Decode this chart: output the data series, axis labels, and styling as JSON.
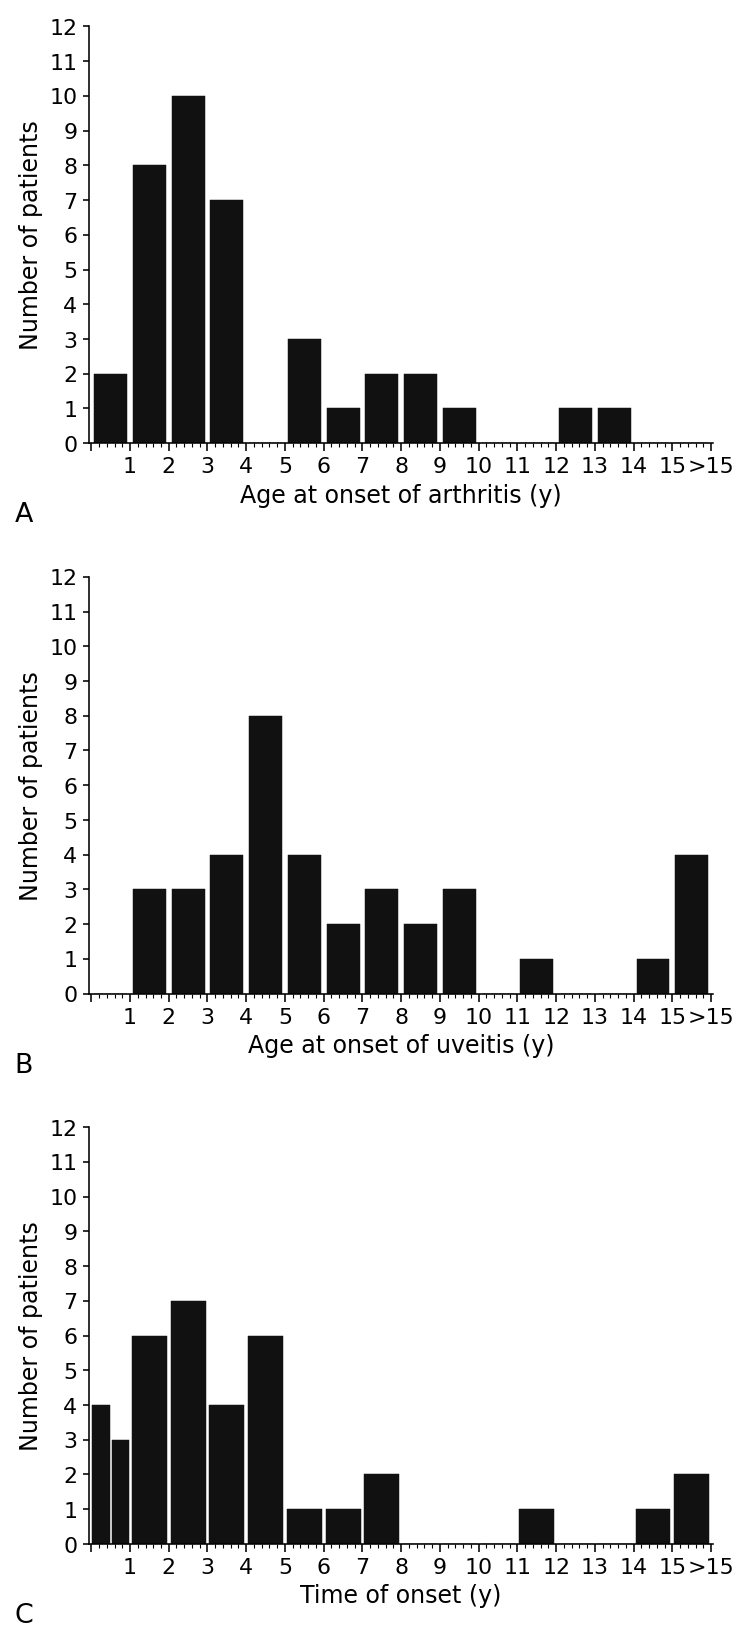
{
  "chart_A": {
    "bar_centers": [
      0.5,
      1.5,
      2.5,
      3.5,
      4.5,
      5.5,
      6.5,
      7.5,
      8.5,
      9.5,
      10.5,
      11.5,
      12.5,
      13.5,
      14.5,
      15.5
    ],
    "values": [
      2,
      8,
      10,
      7,
      0,
      3,
      1,
      2,
      2,
      1,
      0,
      0,
      1,
      1,
      0,
      0
    ],
    "xtick_positions": [
      0,
      1,
      2,
      3,
      4,
      5,
      6,
      7,
      8,
      9,
      10,
      11,
      12,
      13,
      14,
      15,
      16
    ],
    "xtick_labels": [
      "",
      "1",
      "2",
      "3",
      "4",
      "5",
      "6",
      "7",
      "8",
      "9",
      "10",
      "11",
      "12",
      "13",
      "14",
      "15",
      ">15"
    ],
    "xlabel": "Age at onset of arthritis (y)",
    "ylabel": "Number of patients",
    "label": "A",
    "ylim": [
      0,
      12
    ],
    "xlim": [
      -0.05,
      16.05
    ],
    "yticks": [
      0,
      1,
      2,
      3,
      4,
      5,
      6,
      7,
      8,
      9,
      10,
      11,
      12
    ]
  },
  "chart_B": {
    "bar_centers": [
      0.5,
      1.5,
      2.5,
      3.5,
      4.5,
      5.5,
      6.5,
      7.5,
      8.5,
      9.5,
      10.5,
      11.5,
      12.5,
      13.5,
      14.5,
      15.5
    ],
    "values": [
      0,
      3,
      3,
      4,
      8,
      4,
      2,
      3,
      2,
      3,
      0,
      1,
      0,
      0,
      1,
      4
    ],
    "xtick_positions": [
      0,
      1,
      2,
      3,
      4,
      5,
      6,
      7,
      8,
      9,
      10,
      11,
      12,
      13,
      14,
      15,
      16
    ],
    "xtick_labels": [
      "",
      "1",
      "2",
      "3",
      "4",
      "5",
      "6",
      "7",
      "8",
      "9",
      "10",
      "11",
      "12",
      "13",
      "14",
      "15",
      ">15"
    ],
    "xlabel": "Age at onset of uveitis (y)",
    "ylabel": "Number of patients",
    "label": "B",
    "ylim": [
      0,
      12
    ],
    "xlim": [
      -0.05,
      16.05
    ],
    "yticks": [
      0,
      1,
      2,
      3,
      4,
      5,
      6,
      7,
      8,
      9,
      10,
      11,
      12
    ]
  },
  "chart_C": {
    "bar_centers": [
      0.25,
      0.75,
      1.5,
      2.5,
      3.5,
      4.5,
      5.5,
      6.5,
      7.5,
      8.5,
      9.5,
      10.5,
      11.5,
      12.5,
      13.5,
      14.5,
      15.5
    ],
    "values": [
      4,
      3,
      6,
      7,
      4,
      6,
      1,
      1,
      2,
      0,
      0,
      0,
      1,
      0,
      0,
      1,
      2
    ],
    "bar_widths": [
      0.45,
      0.45,
      0.9,
      0.9,
      0.9,
      0.9,
      0.9,
      0.9,
      0.9,
      0.9,
      0.9,
      0.9,
      0.9,
      0.9,
      0.9,
      0.9,
      0.9
    ],
    "xtick_positions": [
      0,
      1,
      2,
      3,
      4,
      5,
      6,
      7,
      8,
      9,
      10,
      11,
      12,
      13,
      14,
      15,
      16
    ],
    "xtick_labels": [
      "",
      "1",
      "2",
      "3",
      "4",
      "5",
      "6",
      "7",
      "8",
      "9",
      "10",
      "11",
      "12",
      "13",
      "14",
      "15",
      ">15"
    ],
    "xlabel": "Time of onset (y)",
    "ylabel": "Number of patients",
    "label": "C",
    "ylim": [
      0,
      12
    ],
    "xlim": [
      -0.05,
      16.05
    ],
    "yticks": [
      0,
      1,
      2,
      3,
      4,
      5,
      6,
      7,
      8,
      9,
      10,
      11,
      12
    ]
  },
  "bar_color": "#111111",
  "bar_width": 0.85,
  "background_color": "#ffffff",
  "tick_fontsize": 14,
  "label_fontsize": 15,
  "panel_label_fontsize": 17,
  "figure_width": 6.61,
  "figure_height": 14.4,
  "dpi": 114
}
